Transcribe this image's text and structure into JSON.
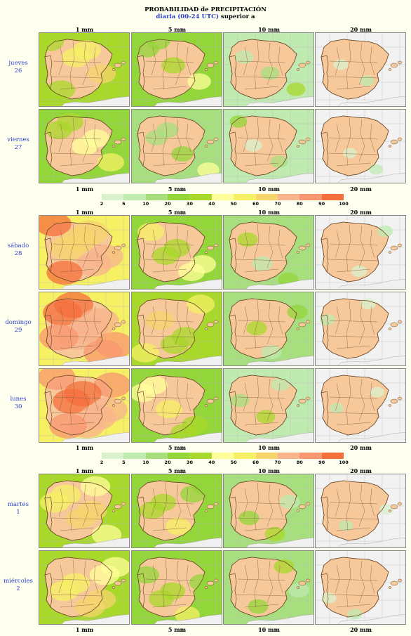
{
  "title": "PROBABILIDAD de PRECIPITACIÓN",
  "subtitle_blue": "diaria (00-24 UTC)",
  "subtitle_rest": " superior a",
  "thresholds": [
    "1 mm",
    "5 mm",
    "10 mm",
    "20 mm"
  ],
  "legend": {
    "ticks": [
      "2",
      "5",
      "10",
      "20",
      "30",
      "40",
      "50",
      "60",
      "70",
      "80",
      "90",
      "100"
    ],
    "colors": [
      "#d9f2cc",
      "#bfeab0",
      "#a8df7e",
      "#93d63a",
      "#a8d82a",
      "#ffff99",
      "#f5f064",
      "#f7d46c",
      "#f8b48c",
      "#f99770",
      "#f56f3c"
    ]
  },
  "days": [
    {
      "name": "jueves",
      "num": "26",
      "levels": [
        0.55,
        0.4,
        0.25,
        0.12
      ]
    },
    {
      "name": "viernes",
      "num": "27",
      "levels": [
        0.5,
        0.35,
        0.2,
        0.1
      ]
    },
    {
      "name": "sábado",
      "num": "28",
      "levels": [
        0.8,
        0.5,
        0.3,
        0.15
      ]
    },
    {
      "name": "domingo",
      "num": "29",
      "levels": [
        0.9,
        0.55,
        0.3,
        0.15
      ]
    },
    {
      "name": "lunes",
      "num": "30",
      "levels": [
        0.85,
        0.5,
        0.25,
        0.1
      ]
    },
    {
      "name": "martes",
      "num": "1",
      "levels": [
        0.6,
        0.45,
        0.3,
        0.1
      ]
    },
    {
      "name": "miércoles",
      "num": "2",
      "levels": [
        0.6,
        0.45,
        0.3,
        0.12
      ]
    }
  ]
}
